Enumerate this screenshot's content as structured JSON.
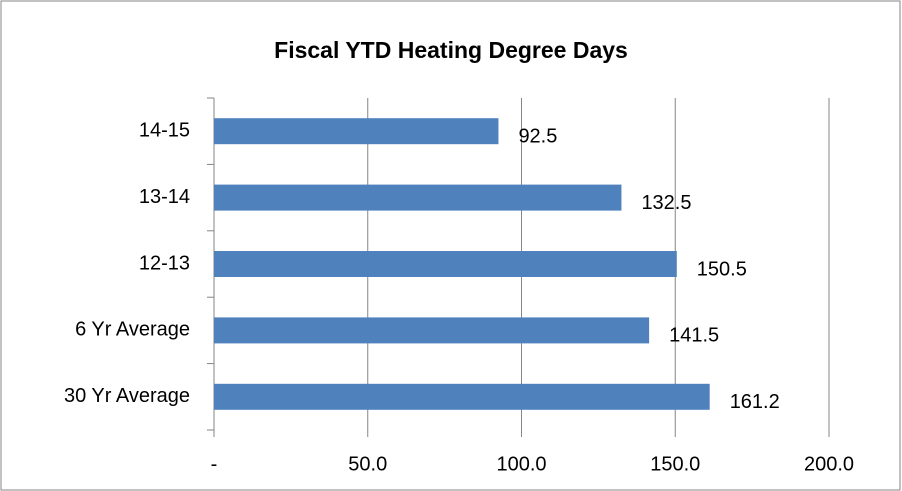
{
  "chart_data": {
    "type": "bar",
    "orientation": "horizontal",
    "title": "Fiscal YTD Heating Degree Days",
    "categories": [
      "14-15",
      "13-14",
      "12-13",
      "6 Yr Average",
      "30 Yr Average"
    ],
    "values": [
      92.5,
      132.5,
      150.5,
      141.5,
      161.2
    ],
    "color": "#4f81bd",
    "xlim": [
      0,
      200
    ],
    "xticks": [
      {
        "value": 0,
        "label": "-"
      },
      {
        "value": 50,
        "label": "50.0"
      },
      {
        "value": 100,
        "label": "100.0"
      },
      {
        "value": 150,
        "label": "150.0"
      },
      {
        "value": 200,
        "label": "200.0"
      }
    ],
    "grid": true
  }
}
